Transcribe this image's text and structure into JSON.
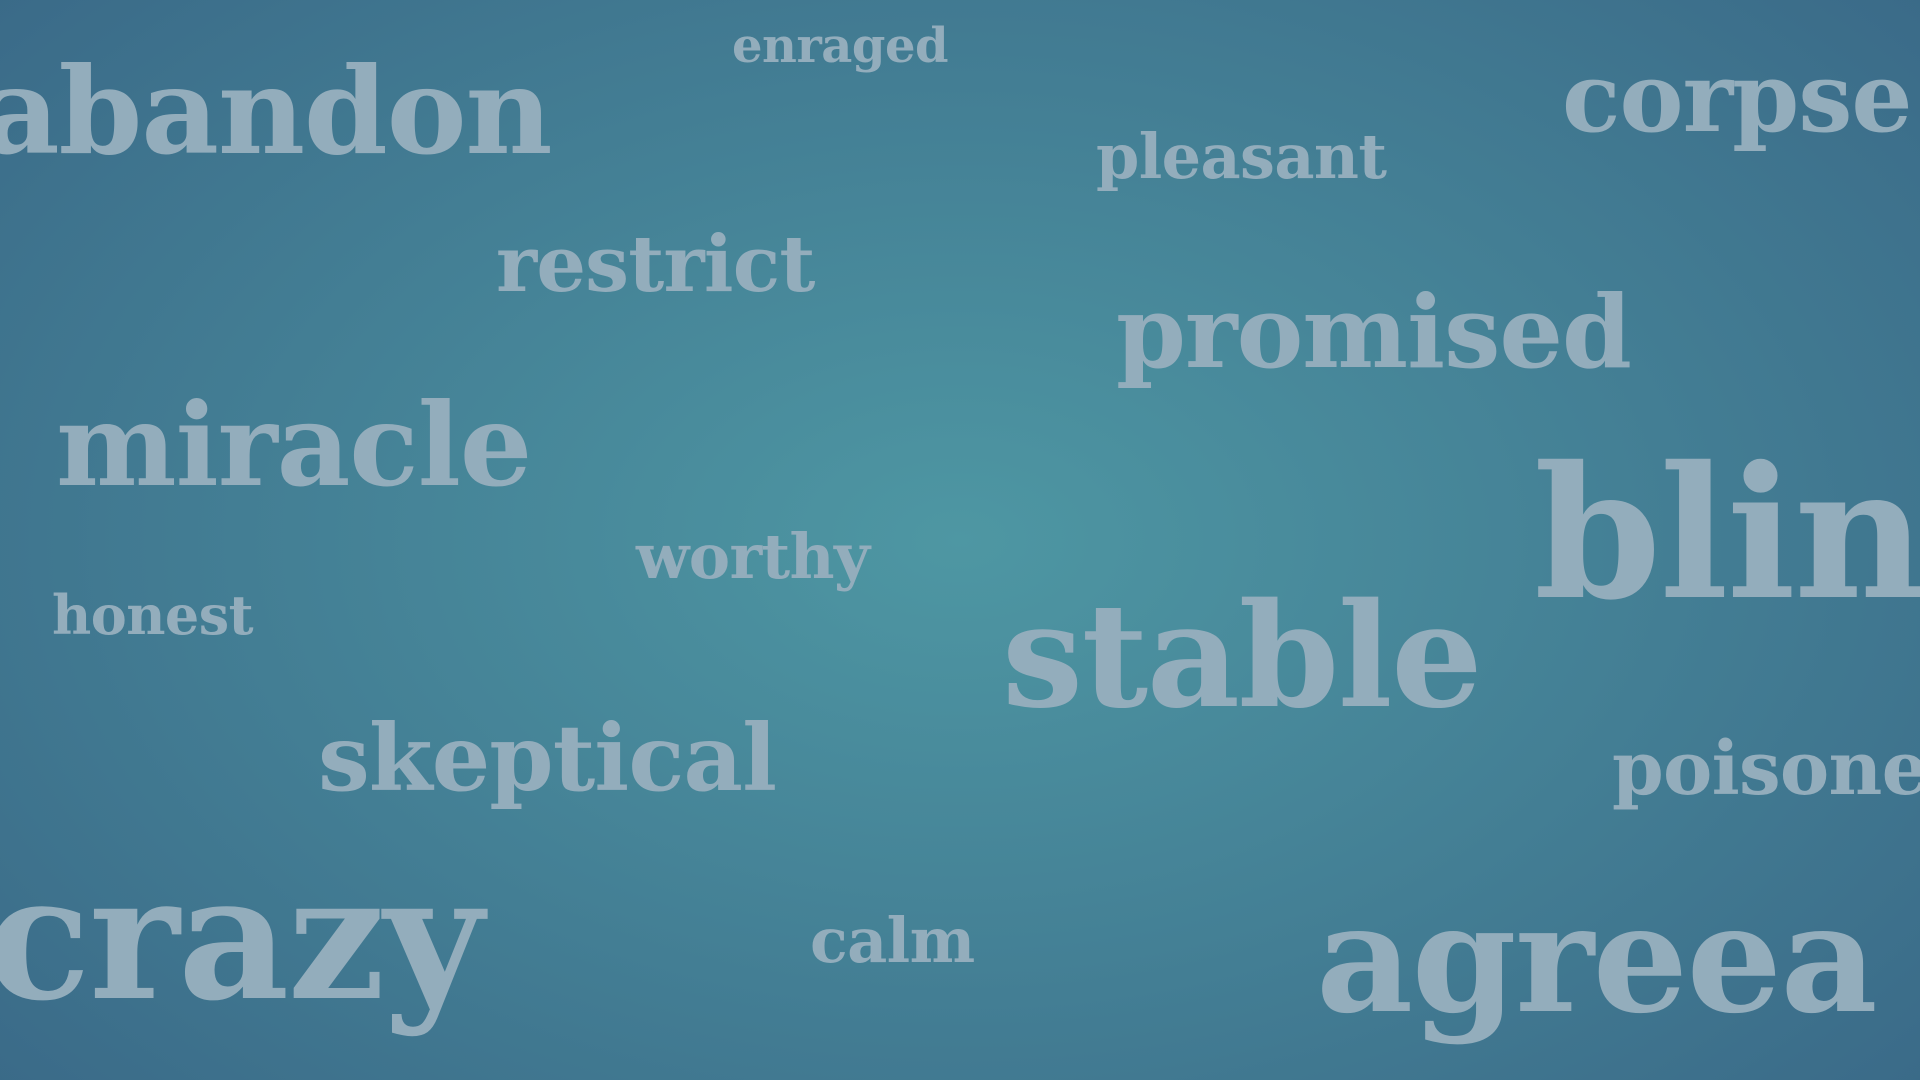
{
  "background": {
    "center_color": "#4e97a3",
    "edge_color": "#386585"
  },
  "word_color": "#93adbc",
  "words": {
    "enraged": "enraged",
    "abandon": "abandon",
    "pleasant": "pleasant",
    "corpse": "corpse",
    "restrict": "restrict",
    "promised": "promised",
    "miracle": "miracle",
    "blind": "blin",
    "worthy": "worthy",
    "honest": "honest",
    "stable": "stable",
    "skeptical": "skeptical",
    "poisoned": "poisone",
    "crazy": "crazy",
    "calm": "calm",
    "agreeable": "agreea"
  }
}
